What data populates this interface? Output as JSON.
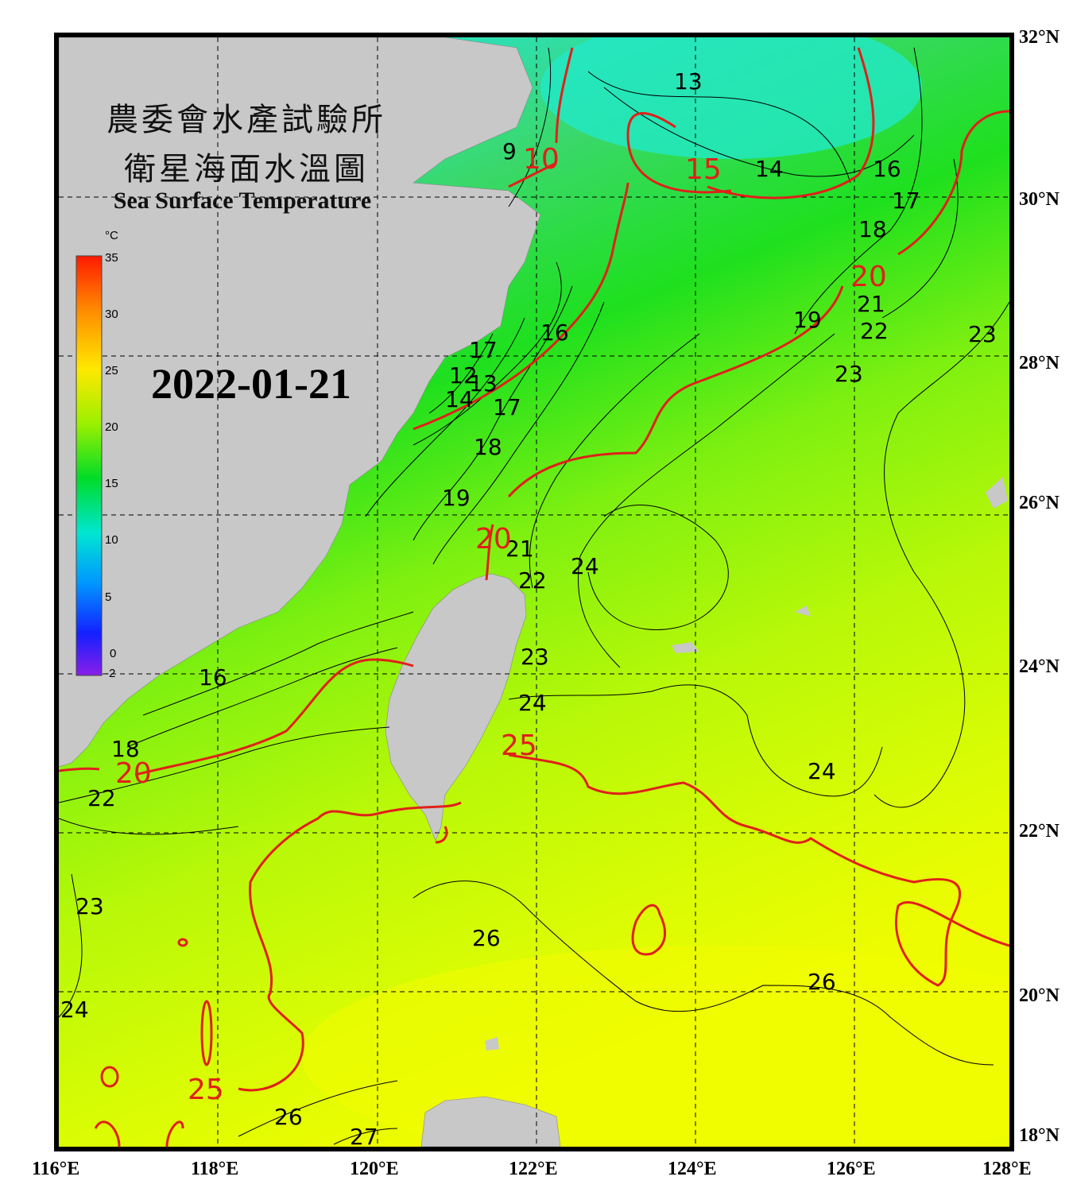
{
  "title": {
    "org_cn": "農委會水產試驗所",
    "subtitle_cn": "衛星海面水溫圖",
    "title_en": "Sea Surface Temperature"
  },
  "date": "2022-01-21",
  "colorbar": {
    "unit": "°C",
    "ticks": [
      "35",
      "30",
      "25",
      "20",
      "15",
      "10",
      "5",
      "0",
      "-2"
    ]
  },
  "axes": {
    "lon_labels": [
      "116°E",
      "118°E",
      "120°E",
      "122°E",
      "124°E",
      "126°E",
      "128°E"
    ],
    "lat_labels": [
      "32°N",
      "30°N",
      "28°N",
      "26°N",
      "24°N",
      "22°N",
      "20°N",
      "18°N"
    ]
  },
  "isotherm_labels": {
    "black": [
      "9",
      "12",
      "13",
      "13",
      "14",
      "14",
      "16",
      "16",
      "16",
      "17",
      "17",
      "17",
      "18",
      "18",
      "18",
      "19",
      "19",
      "21",
      "21",
      "22",
      "22",
      "22",
      "23",
      "23",
      "23",
      "23",
      "24",
      "24",
      "24",
      "26",
      "26",
      "26",
      "27",
      "24"
    ],
    "red": [
      "10",
      "15",
      "20",
      "20",
      "20",
      "25",
      "25"
    ]
  },
  "colors": {
    "land": "#c8c8c8",
    "isotherm_major": "#e0201a",
    "isotherm_minor": "#000000",
    "grid": "#000000"
  }
}
